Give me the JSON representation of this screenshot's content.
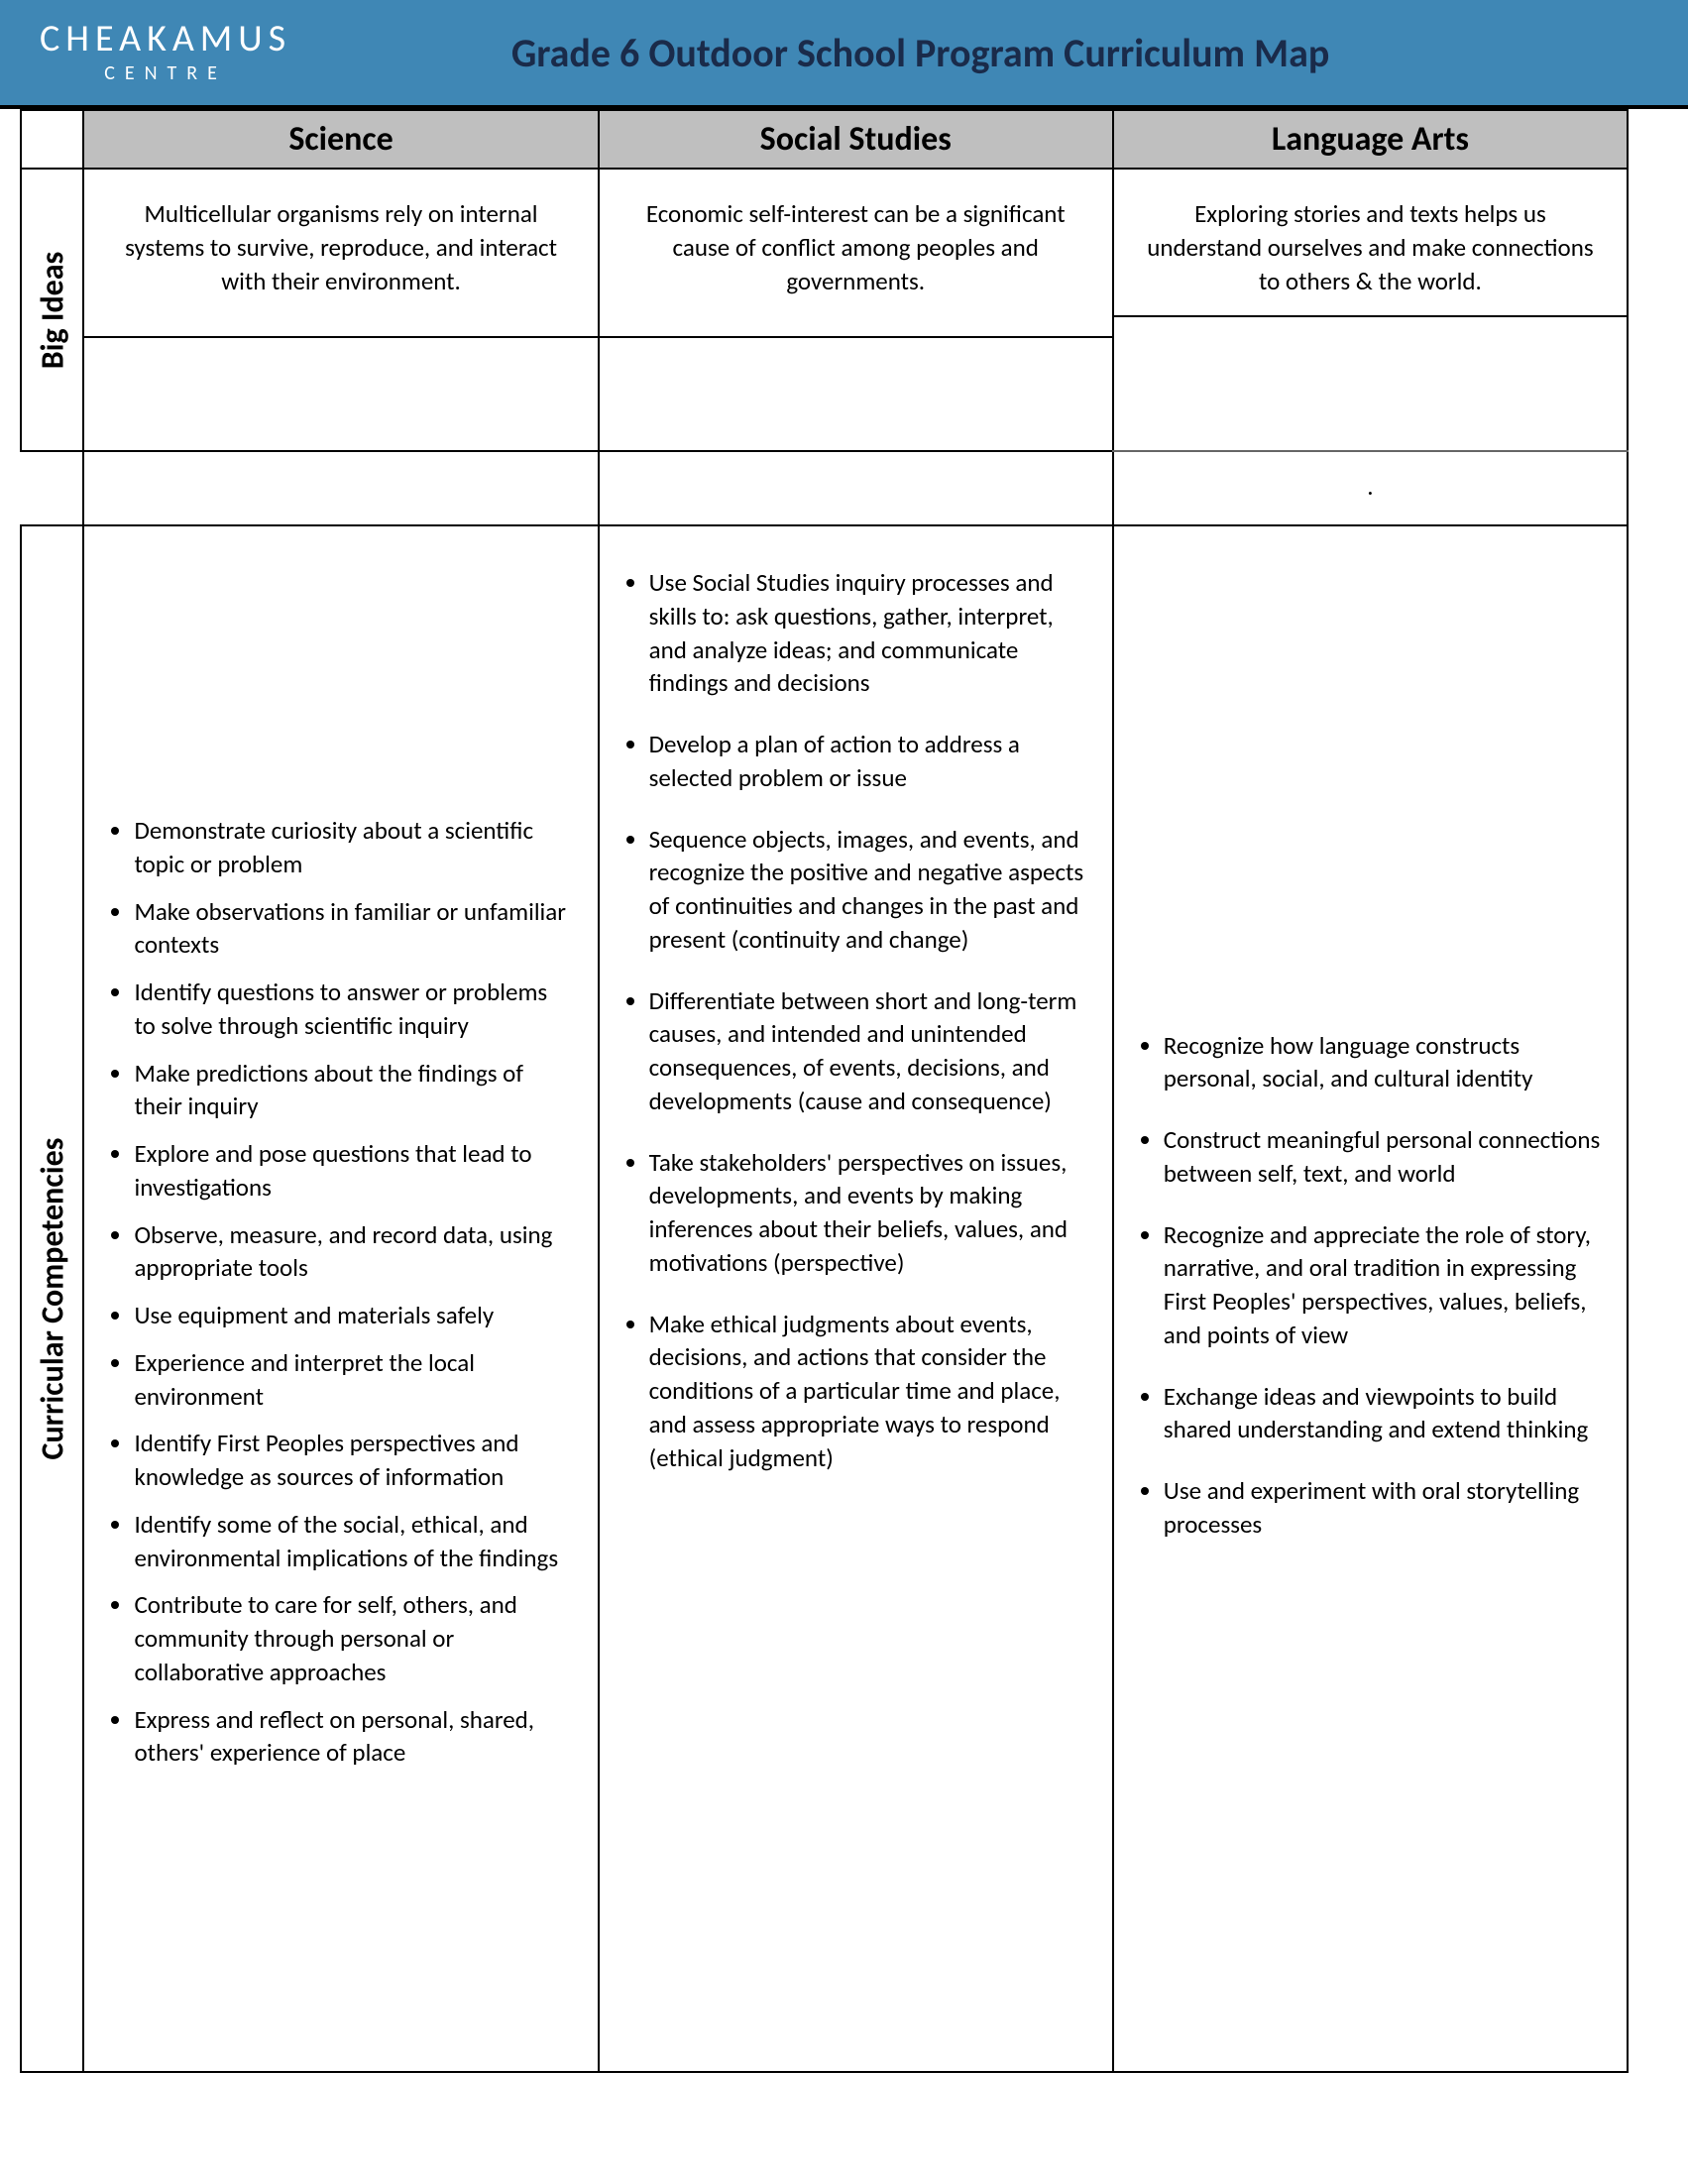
{
  "header": {
    "logo_main": "CHEAKAMUS",
    "logo_sub": "CENTRE",
    "title": "Grade 6 Outdoor School Program Curriculum Map"
  },
  "columns": {
    "science": "Science",
    "social": "Social Studies",
    "language": "Language Arts"
  },
  "rows": {
    "big_ideas": "Big Ideas",
    "competencies": "Curricular Competencies"
  },
  "big_ideas": {
    "science": "Multicellular organisms rely on internal systems to survive, reproduce, and interact with their environment.",
    "social": "Economic self-interest can be a significant cause of conflict among peoples and governments.",
    "language": "Exploring stories and texts helps us understand ourselves and make connections to others & the world.",
    "language_dot": "."
  },
  "competencies": {
    "science": [
      "Demonstrate curiosity about a scientific topic or problem",
      "Make observations in familiar or unfamiliar contexts",
      "Identify questions to answer or problems to solve through scientific inquiry",
      "Make predictions about the findings of their inquiry",
      "Explore and pose questions that lead to investigations",
      "Observe, measure, and record data, using appropriate tools",
      "Use equipment and materials safely",
      "Experience and interpret the local environment",
      "Identify First Peoples perspectives and knowledge as sources of information",
      "Identify some of the social, ethical, and environmental implications of the findings",
      "Contribute to care for self, others, and community through personal or collaborative approaches",
      "Express and reflect on personal, shared, others' experience of place"
    ],
    "social": [
      "Use Social Studies inquiry processes and skills to: ask questions, gather, interpret, and analyze ideas; and communicate findings and decisions",
      "Develop a plan of action to address a selected problem or issue",
      "Sequence objects, images, and events, and recognize the positive and negative aspects of continuities and changes in the past and present (continuity and change)",
      "Differentiate between short and long-term causes, and intended and unintended consequences, of events, decisions, and developments (cause and consequence)",
      "Take stakeholders' perspectives on issues, developments, and events by making inferences about their beliefs, values, and motivations (perspective)",
      "Make ethical judgments about events, decisions, and actions that consider the conditions of a particular time and place, and assess appropriate ways to respond (ethical judgment)"
    ],
    "language": [
      "Recognize how language constructs personal, social, and cultural identity",
      "Construct meaningful personal connections between self, text, and world",
      "Recognize and appreciate the role of story, narrative, and oral tradition in expressing First Peoples' perspectives, values, beliefs, and points of view",
      "Exchange ideas and viewpoints to build shared understanding and extend thinking",
      "Use and experiment with oral storytelling processes"
    ]
  },
  "colors": {
    "header_bg": "#3f87b5",
    "header_title": "#1a2b4a",
    "col_head_bg": "#bfbfbf",
    "border": "#000000",
    "text": "#000000",
    "logo_text": "#ffffff"
  }
}
